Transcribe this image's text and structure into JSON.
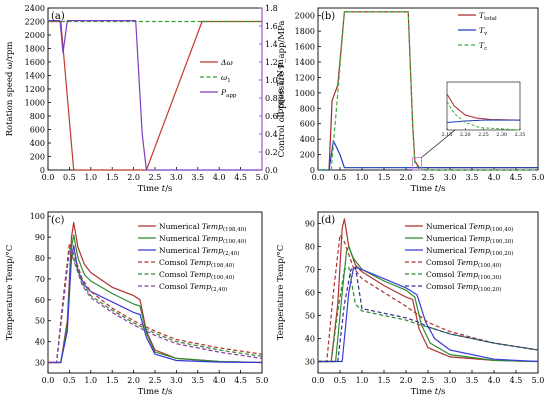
{
  "chart_data": [
    {
      "panel": "(a)",
      "type": "line",
      "xlabel": "Time t/s",
      "ylabel": "Rotation speed ω/rpm",
      "y2label": "Control oil pressure P_app/MPa",
      "xlim": [
        0,
        5.0
      ],
      "ylim": [
        0,
        2400
      ],
      "y2lim": [
        0,
        1.8
      ],
      "x_ticks": [
        "0.0",
        "0.5",
        "1.0",
        "1.5",
        "2.0",
        "2.5",
        "3.0",
        "3.5",
        "4.0",
        "4.5",
        "5.0"
      ],
      "y_ticks": [
        "0",
        "200",
        "400",
        "600",
        "800",
        "1000",
        "1200",
        "1400",
        "1600",
        "1800",
        "2000",
        "2200",
        "2400"
      ],
      "y2_ticks": [
        "0.0",
        "0.2",
        "0.4",
        "0.6",
        "0.8",
        "1.0",
        "1.2",
        "1.4",
        "1.6",
        "1.8"
      ],
      "legend_position": "right",
      "series": [
        {
          "name": "Δω",
          "color": "#c0392b",
          "style": "solid",
          "axis": "left",
          "x": [
            0.0,
            0.3,
            0.6,
            2.3,
            3.6,
            5.0
          ],
          "y": [
            2200,
            2200,
            0,
            0,
            2200,
            2200
          ]
        },
        {
          "name": "ω1",
          "color": "#2e9e2e",
          "style": "dashed",
          "axis": "left",
          "x": [
            0.0,
            5.0
          ],
          "y": [
            2200,
            2200
          ]
        },
        {
          "name": "P_app",
          "color": "#7b3fbf",
          "style": "solid",
          "axis": "right",
          "x": [
            0.0,
            0.28,
            0.35,
            0.45,
            2.05,
            2.2,
            2.3,
            5.0
          ],
          "y": [
            1.66,
            1.66,
            1.3,
            1.66,
            1.66,
            0.4,
            0.0,
            0.0
          ]
        }
      ]
    },
    {
      "panel": "(b)",
      "type": "line",
      "xlabel": "Time t/s",
      "ylabel": "Torque T/N·m",
      "xlim": [
        0,
        5.0
      ],
      "ylim": [
        0,
        2100
      ],
      "x_ticks": [
        "0.0",
        "0.5",
        "1.0",
        "1.5",
        "2.0",
        "2.5",
        "3.0",
        "3.5",
        "4.0",
        "4.5",
        "5.0"
      ],
      "y_ticks": [
        "0",
        "200",
        "400",
        "600",
        "800",
        "1000",
        "1200",
        "1400",
        "1600",
        "1800",
        "2000"
      ],
      "legend_position": "right",
      "series": [
        {
          "name": "T_total",
          "color": "#a52a2a",
          "style": "solid",
          "x": [
            0.0,
            0.25,
            0.32,
            0.45,
            0.6,
            2.05,
            2.15,
            2.2,
            2.3,
            5.0
          ],
          "y": [
            0,
            0,
            900,
            1100,
            2050,
            2050,
            600,
            120,
            30,
            30
          ]
        },
        {
          "name": "T_v",
          "color": "#1f3fbf",
          "style": "solid",
          "x": [
            0.0,
            0.25,
            0.35,
            0.5,
            0.6,
            5.0
          ],
          "y": [
            0,
            0,
            380,
            200,
            30,
            30
          ]
        },
        {
          "name": "T_c",
          "color": "#3fae3f",
          "style": "dashed",
          "x": [
            0.0,
            0.3,
            0.45,
            0.6,
            2.05,
            2.15,
            2.2,
            2.3,
            5.0
          ],
          "y": [
            0,
            0,
            1000,
            2050,
            2050,
            600,
            100,
            0,
            0
          ]
        }
      ],
      "inset": {
        "xlim": [
          2.15,
          2.35
        ],
        "ylim": [
          0,
          160
        ],
        "x_ticks": [
          "2.15",
          "2.20",
          "2.25",
          "2.30",
          "2.35"
        ],
        "series": [
          {
            "name": "T_total",
            "x": [
              2.15,
              2.17,
              2.2,
              2.23,
              2.27,
              2.35
            ],
            "y": [
              120,
              80,
              50,
              40,
              35,
              33
            ]
          },
          {
            "name": "T_v",
            "x": [
              2.15,
              2.2,
              2.25,
              2.35
            ],
            "y": [
              25,
              30,
              33,
              33
            ]
          },
          {
            "name": "T_c",
            "x": [
              2.15,
              2.17,
              2.2,
              2.24,
              2.35
            ],
            "y": [
              95,
              55,
              25,
              8,
              0
            ]
          }
        ]
      }
    },
    {
      "panel": "(c)",
      "type": "line",
      "xlabel": "Time t/s",
      "ylabel": "Temperature Temp/°C",
      "xlim": [
        0,
        5.0
      ],
      "ylim": [
        25,
        102
      ],
      "x_ticks": [
        "0.0",
        "0.5",
        "1.0",
        "1.5",
        "2.0",
        "2.5",
        "3.0",
        "3.5",
        "4.0",
        "4.5",
        "5.0"
      ],
      "y_ticks": [
        "30",
        "40",
        "50",
        "60",
        "70",
        "80",
        "90",
        "100"
      ],
      "legend_position": "top-right",
      "series": [
        {
          "name": "Numerical Temp(198,40)",
          "color": "#b03030",
          "style": "solid",
          "x": [
            0.0,
            0.3,
            0.45,
            0.55,
            0.6,
            0.7,
            0.85,
            1.0,
            1.5,
            2.0,
            2.15,
            2.3,
            2.5,
            3.0,
            4.0,
            5.0
          ],
          "y": [
            30,
            30,
            50,
            90,
            97,
            85,
            77,
            73,
            66,
            62,
            60,
            45,
            36,
            32,
            30.5,
            30
          ]
        },
        {
          "name": "Numerical Temp(100,40)",
          "color": "#2e8b2e",
          "style": "solid",
          "x": [
            0.0,
            0.3,
            0.45,
            0.55,
            0.6,
            0.7,
            0.85,
            1.0,
            1.5,
            2.0,
            2.15,
            2.3,
            2.5,
            3.0,
            4.0,
            5.0
          ],
          "y": [
            30,
            30,
            48,
            85,
            91,
            80,
            72,
            69,
            63,
            58,
            57,
            44,
            35,
            32,
            30.5,
            30
          ]
        },
        {
          "name": "Numerical Temp(2,40)",
          "color": "#3a3adb",
          "style": "solid",
          "x": [
            0.0,
            0.3,
            0.45,
            0.55,
            0.6,
            0.7,
            0.85,
            1.0,
            1.5,
            2.0,
            2.15,
            2.3,
            2.5,
            3.0,
            4.0,
            5.0
          ],
          "y": [
            30,
            30,
            45,
            80,
            86,
            74,
            67,
            64,
            59,
            54,
            53,
            42,
            34,
            31,
            30.2,
            30
          ]
        },
        {
          "name": "Comsol Temp(198,40)",
          "color": "#b03030",
          "style": "dashed",
          "x": [
            0.0,
            0.2,
            0.35,
            0.5,
            0.6,
            0.8,
            1.0,
            1.5,
            2.0,
            2.3,
            2.5,
            3.0,
            4.0,
            5.0
          ],
          "y": [
            30,
            30,
            60,
            87,
            82,
            70,
            64,
            56,
            50,
            47,
            45,
            41,
            37,
            34
          ]
        },
        {
          "name": "Comsol Temp(100,40)",
          "color": "#2e8b2e",
          "style": "dashed",
          "x": [
            0.0,
            0.2,
            0.35,
            0.5,
            0.6,
            0.8,
            1.0,
            1.5,
            2.0,
            2.3,
            2.5,
            3.0,
            4.0,
            5.0
          ],
          "y": [
            30,
            30,
            58,
            85,
            80,
            68,
            62,
            55,
            49,
            46,
            44,
            40,
            36,
            33
          ]
        },
        {
          "name": "Comsol Temp(2,40)",
          "color": "#8a3aa8",
          "style": "dashed",
          "x": [
            0.0,
            0.2,
            0.35,
            0.5,
            0.6,
            0.8,
            1.0,
            1.5,
            2.0,
            2.3,
            2.5,
            3.0,
            4.0,
            5.0
          ],
          "y": [
            30,
            30,
            57,
            84,
            79,
            67,
            61,
            54,
            48,
            45,
            43,
            39,
            35,
            32
          ]
        }
      ]
    },
    {
      "panel": "(d)",
      "type": "line",
      "xlabel": "Time t/s",
      "ylabel": "Temperature Temp/°C",
      "xlim": [
        0,
        5.0
      ],
      "ylim": [
        25,
        95
      ],
      "x_ticks": [
        "0.0",
        "0.5",
        "1.0",
        "1.5",
        "2.0",
        "2.5",
        "3.0",
        "3.5",
        "4.0",
        "4.5",
        "5.0"
      ],
      "y_ticks": [
        "30",
        "40",
        "50",
        "60",
        "70",
        "80",
        "90"
      ],
      "legend_position": "top-right",
      "series": [
        {
          "name": "Numerical Temp(100,40)",
          "color": "#b03030",
          "style": "solid",
          "x": [
            0.0,
            0.3,
            0.45,
            0.55,
            0.6,
            0.7,
            0.85,
            1.0,
            1.5,
            2.0,
            2.15,
            2.3,
            2.5,
            3.0,
            4.0,
            5.0
          ],
          "y": [
            30,
            30,
            55,
            88,
            92,
            80,
            72,
            69,
            63,
            58,
            57,
            44,
            36,
            32,
            30.5,
            30
          ]
        },
        {
          "name": "Numerical Temp(100,30)",
          "color": "#2e8b2e",
          "style": "solid",
          "x": [
            0.0,
            0.4,
            0.55,
            0.65,
            0.7,
            0.8,
            1.0,
            1.5,
            2.0,
            2.2,
            2.35,
            2.55,
            3.0,
            4.0,
            5.0
          ],
          "y": [
            30,
            30,
            60,
            78,
            80,
            75,
            70,
            65,
            61,
            58,
            46,
            38,
            33,
            30.5,
            30
          ]
        },
        {
          "name": "Numerical Temp(100,20)",
          "color": "#3a3adb",
          "style": "solid",
          "x": [
            0.0,
            0.55,
            0.7,
            0.8,
            0.85,
            1.0,
            1.5,
            2.0,
            2.25,
            2.45,
            2.65,
            3.0,
            4.0,
            5.0
          ],
          "y": [
            30,
            30,
            60,
            70,
            71,
            70,
            66,
            62,
            59,
            47,
            40,
            35,
            31,
            30
          ]
        },
        {
          "name": "Comsol Temp(100,40)",
          "color": "#b03030",
          "style": "dashed",
          "x": [
            0.0,
            0.2,
            0.35,
            0.5,
            0.6,
            0.8,
            1.0,
            1.5,
            2.0,
            2.3,
            2.5,
            3.0,
            4.0,
            5.0
          ],
          "y": [
            30,
            30,
            60,
            85,
            82,
            71,
            66,
            60,
            54,
            50,
            47,
            43,
            38,
            35
          ]
        },
        {
          "name": "Comsol Temp(100,30)",
          "color": "#2e8b2e",
          "style": "dashed",
          "x": [
            0.0,
            0.3,
            0.45,
            0.6,
            0.7,
            0.85,
            1.0,
            1.5,
            2.0,
            2.3,
            2.5,
            3.0,
            4.0,
            5.0
          ],
          "y": [
            30,
            30,
            52,
            70,
            71,
            55,
            52,
            50,
            48,
            46,
            45,
            42,
            38,
            35
          ]
        },
        {
          "name": "Comsol Temp(100,20)",
          "color": "#303090",
          "style": "dashed",
          "x": [
            0.0,
            0.45,
            0.6,
            0.75,
            0.85,
            1.0,
            1.5,
            2.0,
            2.3,
            2.5,
            3.0,
            4.0,
            5.0
          ],
          "y": [
            30,
            30,
            55,
            70,
            71,
            53,
            51,
            49,
            47,
            45,
            42,
            38,
            35
          ]
        }
      ]
    }
  ]
}
